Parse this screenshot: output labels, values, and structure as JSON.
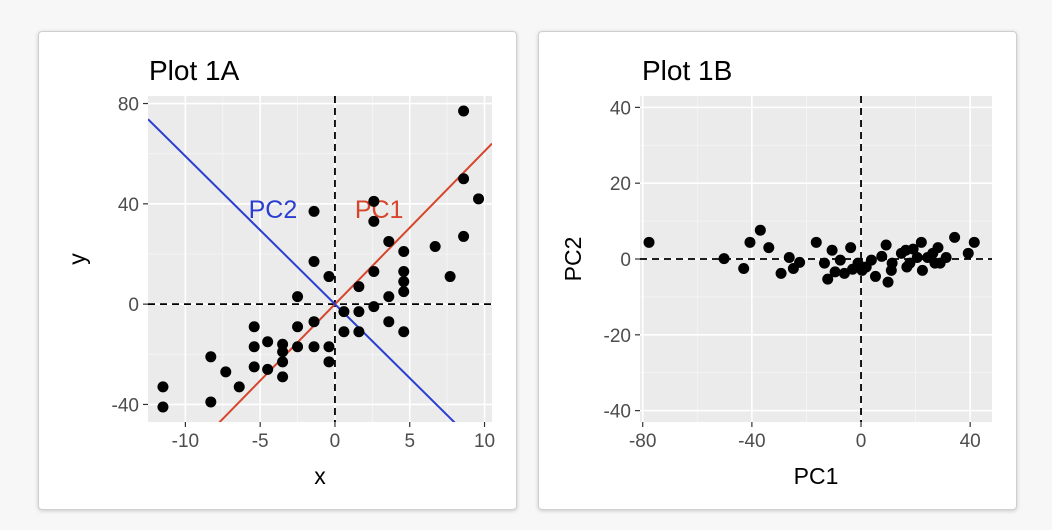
{
  "chart_data": [
    {
      "type": "scatter",
      "title": "Plot 1A",
      "xlabel": "x",
      "ylabel": "y",
      "xlim": [
        -12.5,
        10.5
      ],
      "ylim": [
        -47,
        83
      ],
      "xticks": [
        -10,
        -5,
        0,
        5,
        10
      ],
      "yticks": [
        -40,
        0,
        40,
        80
      ],
      "xtick_labels": [
        "-10",
        "-5",
        "0",
        "5",
        "10"
      ],
      "ytick_labels": [
        "-40",
        "0",
        "40",
        "80"
      ],
      "grid": true,
      "reference_lines": [
        {
          "orientation": "vertical",
          "value": 0,
          "style": "dashed"
        },
        {
          "orientation": "horizontal",
          "value": 0,
          "style": "dashed"
        }
      ],
      "component_lines": [
        {
          "name": "PC1",
          "color": "#d6452c",
          "slope": 6.1,
          "intercept": 0
        },
        {
          "name": "PC2",
          "color": "#2a3fd1",
          "slope": -5.9,
          "intercept": 0
        }
      ],
      "points": [
        {
          "x": -11.5,
          "y": -33
        },
        {
          "x": -11.5,
          "y": -41
        },
        {
          "x": -8.3,
          "y": -21
        },
        {
          "x": -8.3,
          "y": -39
        },
        {
          "x": -7.3,
          "y": -27
        },
        {
          "x": -6.4,
          "y": -33
        },
        {
          "x": -5.4,
          "y": -9
        },
        {
          "x": -5.4,
          "y": -17
        },
        {
          "x": -5.4,
          "y": -25
        },
        {
          "x": -4.5,
          "y": -15
        },
        {
          "x": -4.5,
          "y": -26
        },
        {
          "x": -3.5,
          "y": -16
        },
        {
          "x": -3.5,
          "y": -19
        },
        {
          "x": -3.5,
          "y": -23
        },
        {
          "x": -3.5,
          "y": -29
        },
        {
          "x": -2.5,
          "y": -9
        },
        {
          "x": -2.5,
          "y": -17
        },
        {
          "x": -2.5,
          "y": 3
        },
        {
          "x": -1.4,
          "y": 37
        },
        {
          "x": -1.4,
          "y": 17
        },
        {
          "x": -1.4,
          "y": -7
        },
        {
          "x": -1.4,
          "y": -17
        },
        {
          "x": -0.4,
          "y": 11
        },
        {
          "x": -0.4,
          "y": -17
        },
        {
          "x": -0.4,
          "y": -23
        },
        {
          "x": 0.6,
          "y": -3
        },
        {
          "x": 0.6,
          "y": -11
        },
        {
          "x": 1.6,
          "y": 7
        },
        {
          "x": 1.6,
          "y": -3
        },
        {
          "x": 1.6,
          "y": -11
        },
        {
          "x": 2.6,
          "y": 41
        },
        {
          "x": 2.6,
          "y": 33
        },
        {
          "x": 2.6,
          "y": 13
        },
        {
          "x": 2.6,
          "y": -1
        },
        {
          "x": 3.6,
          "y": 25
        },
        {
          "x": 3.6,
          "y": 3
        },
        {
          "x": 3.6,
          "y": -7
        },
        {
          "x": 4.6,
          "y": 21
        },
        {
          "x": 4.6,
          "y": 13
        },
        {
          "x": 4.6,
          "y": 9
        },
        {
          "x": 4.6,
          "y": 5
        },
        {
          "x": 4.6,
          "y": -11
        },
        {
          "x": 6.7,
          "y": 23
        },
        {
          "x": 7.7,
          "y": 11
        },
        {
          "x": 8.6,
          "y": 77
        },
        {
          "x": 8.6,
          "y": 50
        },
        {
          "x": 8.6,
          "y": 27
        },
        {
          "x": 9.6,
          "y": 42
        }
      ]
    },
    {
      "type": "scatter",
      "title": "Plot 1B",
      "xlabel": "PC1",
      "ylabel": "PC2",
      "xlim": [
        -81,
        48
      ],
      "ylim": [
        -43,
        43
      ],
      "xticks": [
        -80,
        -40,
        0,
        40
      ],
      "yticks": [
        -40,
        -20,
        0,
        20,
        40
      ],
      "xtick_labels": [
        "-80",
        "-40",
        "0",
        "40"
      ],
      "ytick_labels": [
        "-40",
        "-20",
        "0",
        "20",
        "40"
      ],
      "grid": true,
      "reference_lines": [
        {
          "orientation": "vertical",
          "value": 0,
          "style": "dashed"
        },
        {
          "orientation": "horizontal",
          "value": 0,
          "style": "dashed"
        }
      ],
      "points": [
        {
          "x": -77.7,
          "y": 4.4
        },
        {
          "x": -50.2,
          "y": 0.1
        },
        {
          "x": -43.0,
          "y": -2.5
        },
        {
          "x": -40.7,
          "y": 4.4
        },
        {
          "x": -36.9,
          "y": 7.6
        },
        {
          "x": -33.8,
          "y": 3.0
        },
        {
          "x": -29.3,
          "y": -3.8
        },
        {
          "x": -26.3,
          "y": 0.4
        },
        {
          "x": -24.8,
          "y": -2.5
        },
        {
          "x": -22.5,
          "y": -0.9
        },
        {
          "x": -16.4,
          "y": 4.4
        },
        {
          "x": -13.4,
          "y": -1.1
        },
        {
          "x": -12.2,
          "y": -5.3
        },
        {
          "x": -10.6,
          "y": 2.3
        },
        {
          "x": -9.5,
          "y": -3.4
        },
        {
          "x": -7.6,
          "y": -0.3
        },
        {
          "x": -6.1,
          "y": -3.8
        },
        {
          "x": -3.8,
          "y": 3.0
        },
        {
          "x": -3.1,
          "y": -2.7
        },
        {
          "x": -1.1,
          "y": -1.1
        },
        {
          "x": 0.4,
          "y": -3.0
        },
        {
          "x": 1.9,
          "y": -2.1
        },
        {
          "x": 3.8,
          "y": -0.3
        },
        {
          "x": 5.3,
          "y": -4.6
        },
        {
          "x": 7.6,
          "y": 0.7
        },
        {
          "x": 9.2,
          "y": 3.7
        },
        {
          "x": 9.9,
          "y": -6.1
        },
        {
          "x": 11.1,
          "y": -3.0
        },
        {
          "x": 11.4,
          "y": -1.1
        },
        {
          "x": 14.8,
          "y": 1.5
        },
        {
          "x": 16.4,
          "y": 2.3
        },
        {
          "x": 16.8,
          "y": -2.1
        },
        {
          "x": 17.9,
          "y": -1.1
        },
        {
          "x": 19.1,
          "y": 2.6
        },
        {
          "x": 20.6,
          "y": 0.4
        },
        {
          "x": 22.1,
          "y": 4.4
        },
        {
          "x": 22.5,
          "y": -3.0
        },
        {
          "x": 24.4,
          "y": 0.4
        },
        {
          "x": 26.3,
          "y": 1.5
        },
        {
          "x": 27.1,
          "y": -1.1
        },
        {
          "x": 28.2,
          "y": 3.0
        },
        {
          "x": 29.0,
          "y": -1.1
        },
        {
          "x": 31.2,
          "y": 0.4
        },
        {
          "x": 34.3,
          "y": 5.7
        },
        {
          "x": 39.3,
          "y": 1.5
        },
        {
          "x": 41.5,
          "y": 4.4
        }
      ]
    }
  ]
}
